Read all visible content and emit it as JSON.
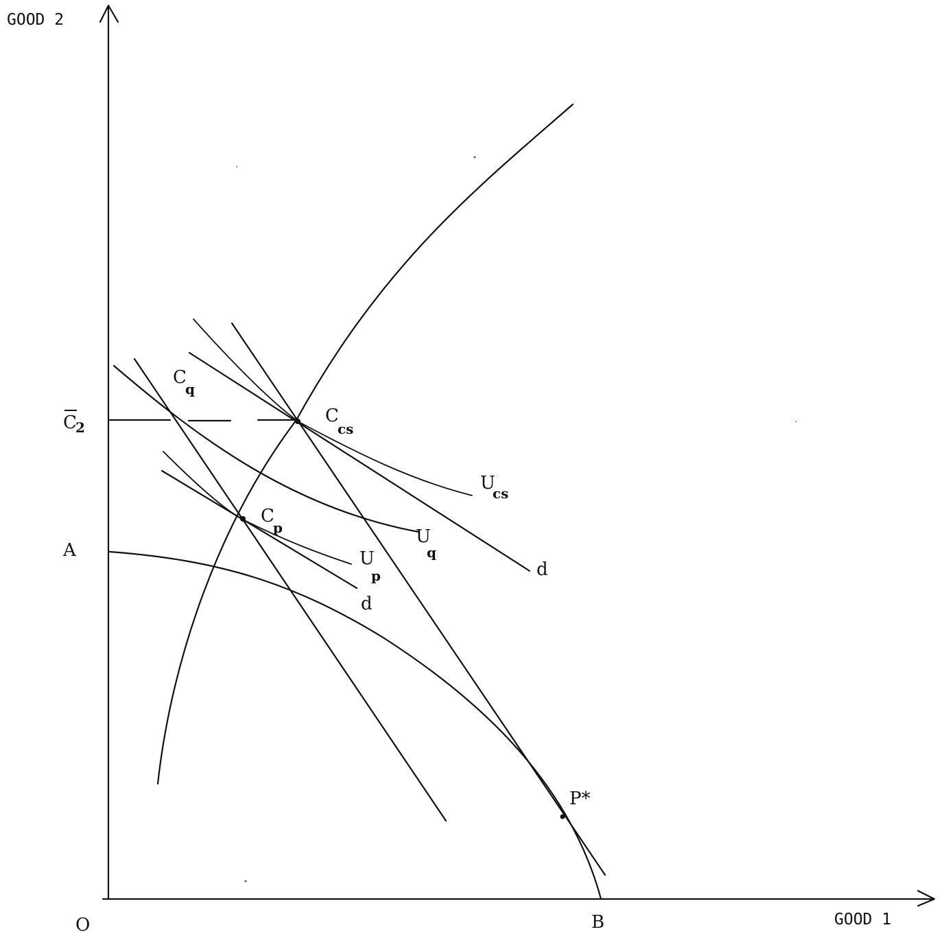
{
  "axes": {
    "y_label": "GOOD 2",
    "x_label": "GOOD 1",
    "origin": "O"
  },
  "points": {
    "a": "A",
    "b": "B",
    "c2_main": "C",
    "c2_sub": "2",
    "cq_main": "C",
    "cq_sub": "q",
    "ccs_main": "C",
    "ccs_sub": "cs",
    "cp_main": "C",
    "cp_sub": "p",
    "pstar": "P*"
  },
  "curves": {
    "ucs_main": "U",
    "ucs_sub": "cs",
    "uq_main": "U",
    "uq_sub": "q",
    "up_main": "U",
    "up_sub": "p",
    "d_upper": "d",
    "d_lower": "d"
  },
  "colors": {
    "ink": "#111111",
    "paper": "#ffffff"
  }
}
